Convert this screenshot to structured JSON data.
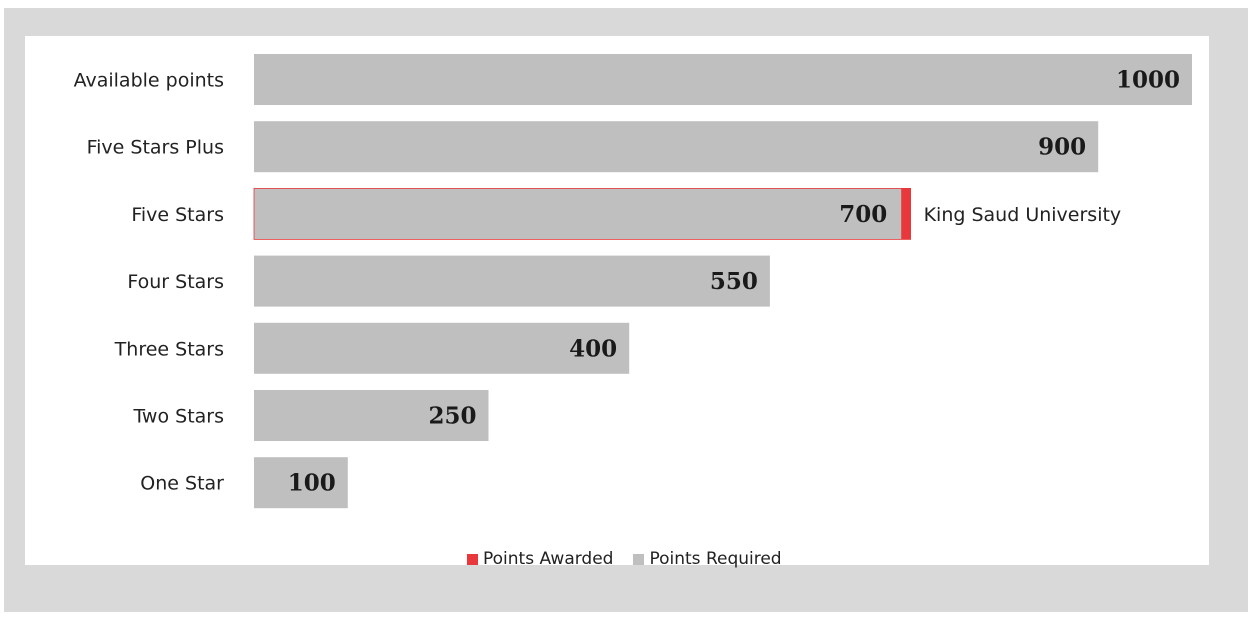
{
  "chart_data": {
    "type": "bar",
    "orientation": "horizontal",
    "categories": [
      "Available points",
      "Five Stars Plus",
      "Five Stars",
      "Four Stars",
      "Three Stars",
      "Two Stars",
      "One Star"
    ],
    "series": [
      {
        "name": "Points Required",
        "color": "#bfbfbf",
        "values": [
          1000,
          900,
          700,
          550,
          400,
          250,
          100
        ]
      },
      {
        "name": "Points Awarded",
        "color": "#e8383b",
        "values": [
          null,
          null,
          10,
          null,
          null,
          null,
          null
        ]
      }
    ],
    "data_labels": [
      "1000",
      "900",
      "700",
      "550",
      "400",
      "250",
      "100"
    ],
    "annotation": {
      "category": "Five Stars",
      "text": "King Saud University"
    },
    "xlim": [
      0,
      1000
    ],
    "grid": false,
    "legend": {
      "position": "bottom",
      "items": [
        {
          "label": "Points Awarded",
          "color": "#e8383b"
        },
        {
          "label": "Points Required",
          "color": "#bfbfbf"
        }
      ]
    }
  }
}
